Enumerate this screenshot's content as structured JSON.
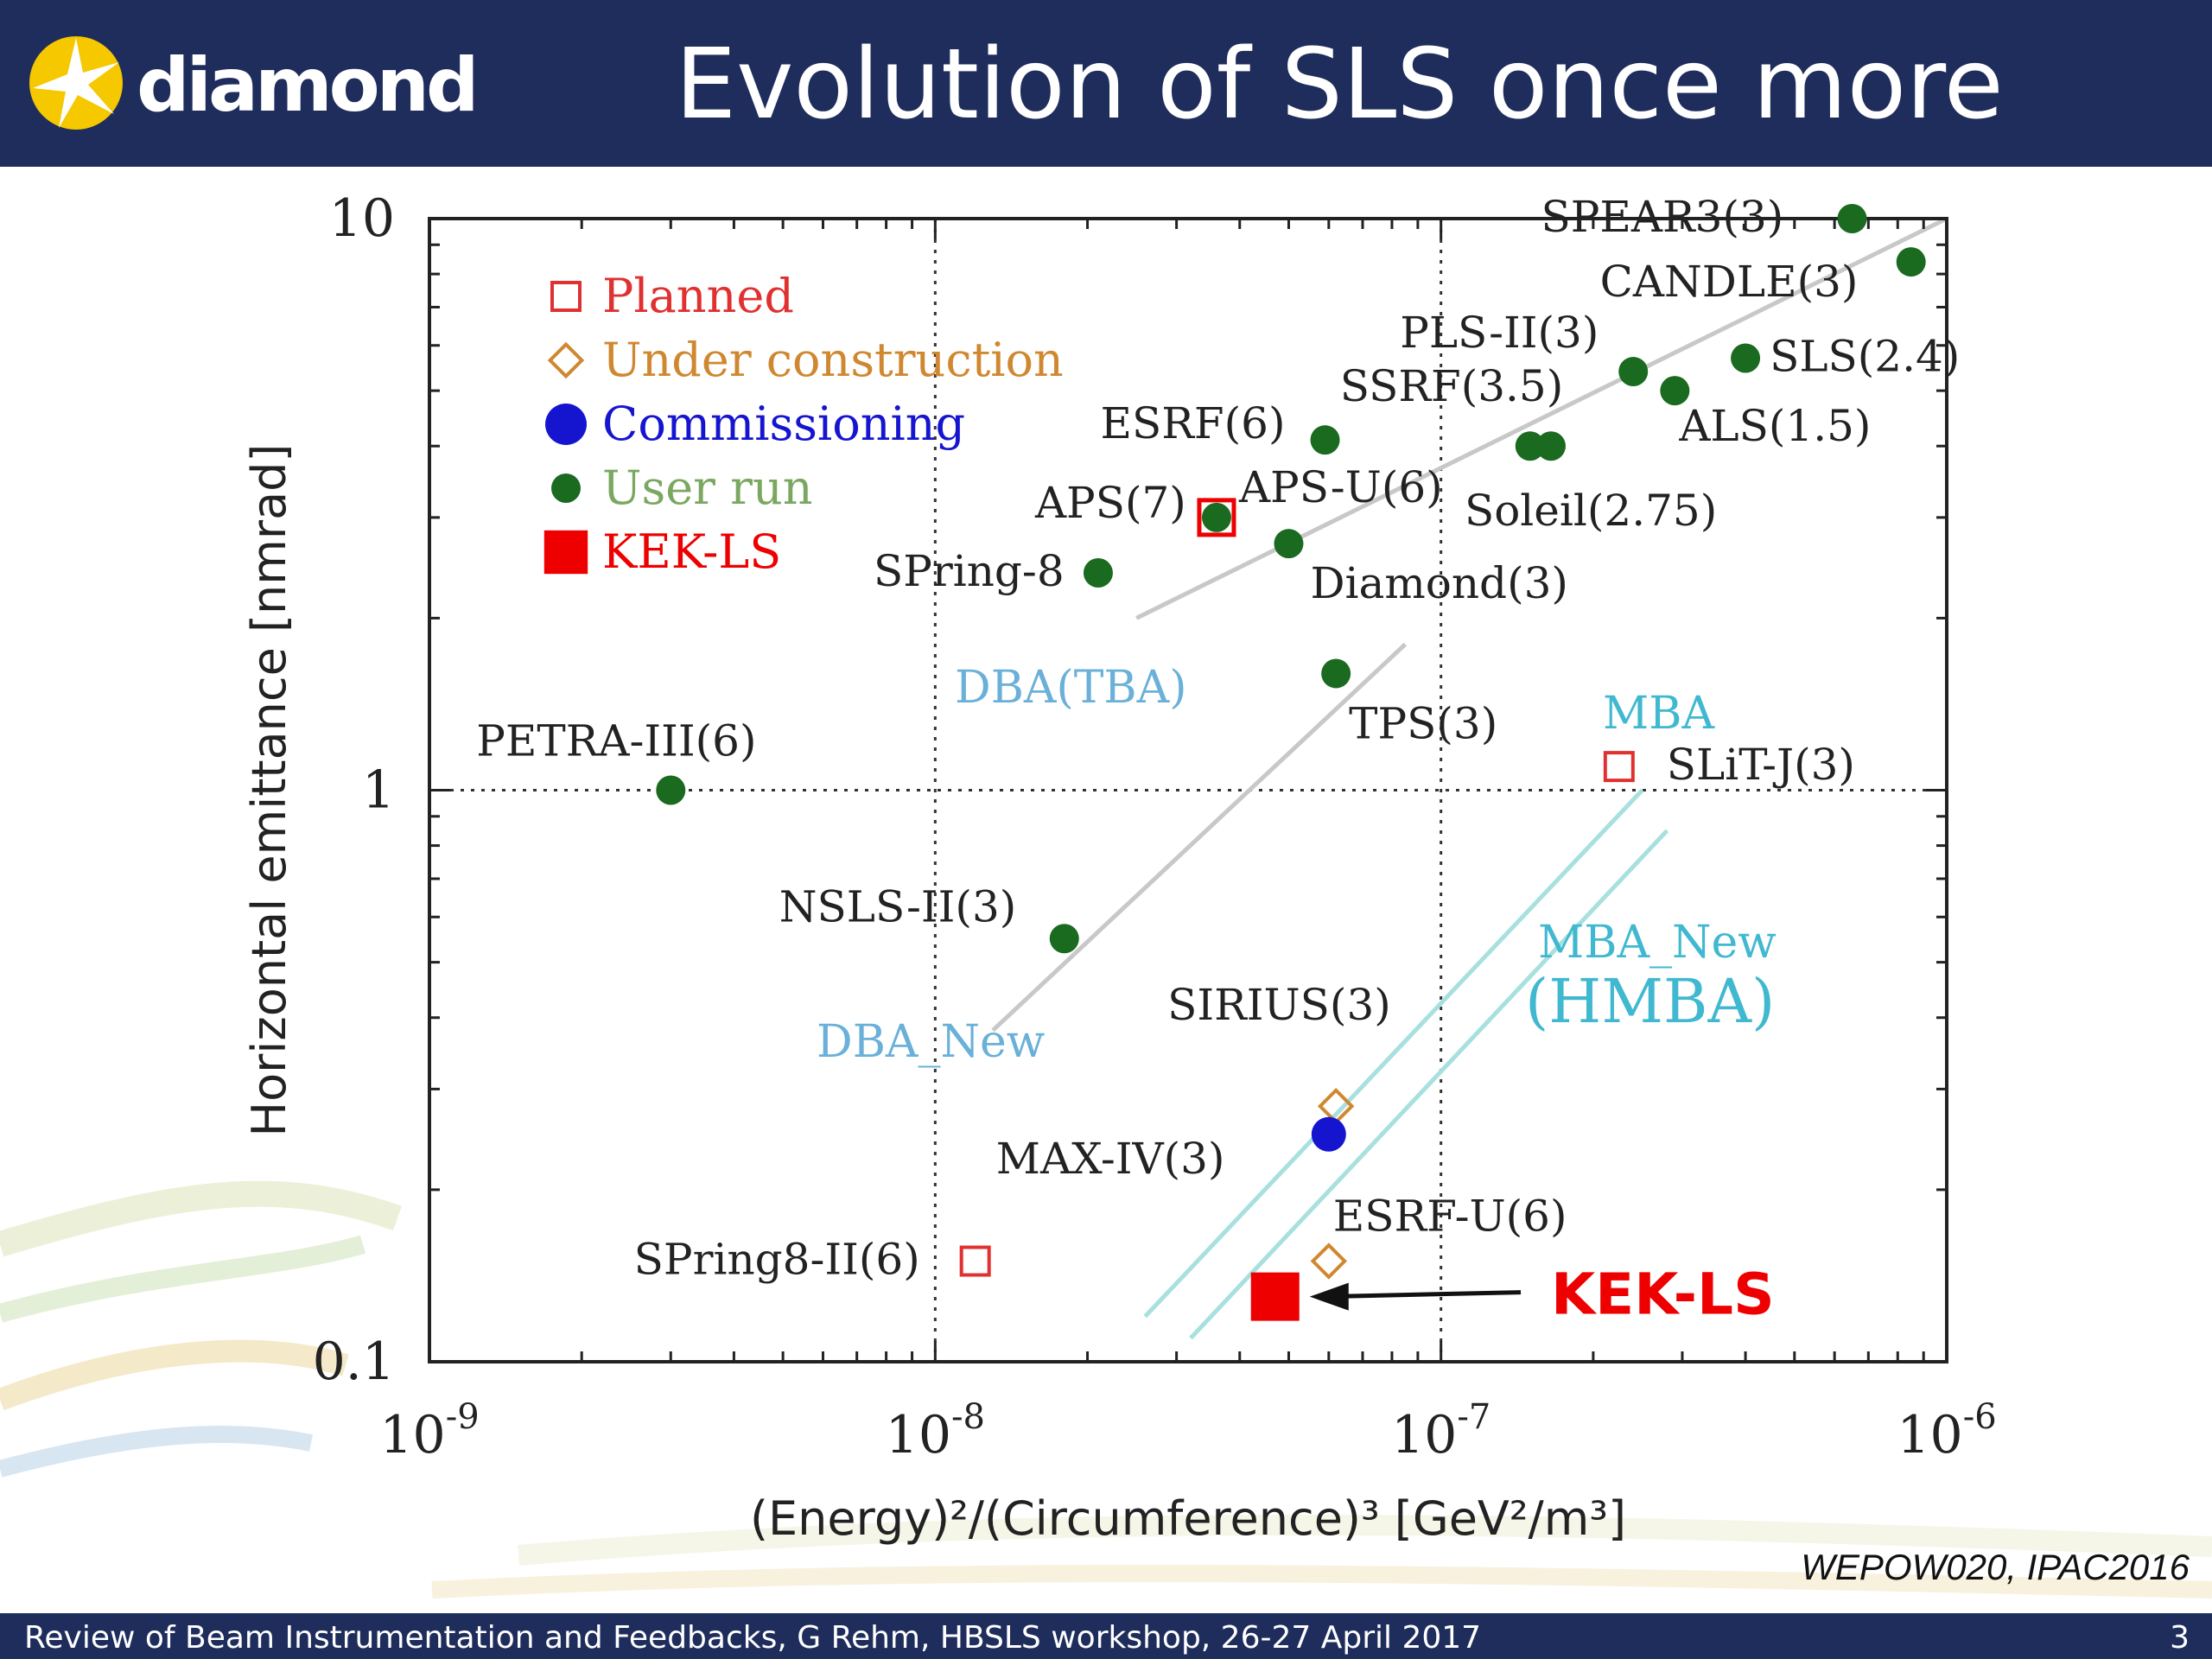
{
  "slide": {
    "logo_text": "diamond",
    "title": "Evolution of SLS once more",
    "reference": "WEPOW020, IPAC2016",
    "footer_text": "Review of Beam Instrumentation and Feedbacks, G Rehm, HBSLS workshop, 26-27 April 2017",
    "page_number": "3"
  },
  "colors": {
    "header_bg": "#1f2d5c",
    "planned": "#e03030",
    "under_construction": "#d08830",
    "commissioning": "#1515d0",
    "user_run": "#1a6a20",
    "kek_ls": "#ee0000",
    "dba_line": "#c8c8c8",
    "mba_line": "#a8e0e0"
  },
  "chart_data": {
    "type": "scatter",
    "xscale": "log",
    "yscale": "log",
    "xlim": [
      1e-09,
      1e-06
    ],
    "ylim": [
      0.1,
      10
    ],
    "xlabel": "(Energy)²/(Circumference)³  [GeV²/m³]",
    "ylabel": "Horizontal emittance [nmrad]",
    "x_ticks": [
      {
        "value": 1e-09,
        "base": "10",
        "exp": "-9"
      },
      {
        "value": 1e-08,
        "base": "10",
        "exp": "-8"
      },
      {
        "value": 1e-07,
        "base": "10",
        "exp": "-7"
      },
      {
        "value": 1e-06,
        "base": "10",
        "exp": "-6"
      }
    ],
    "y_ticks": [
      {
        "value": 0.1,
        "label": "0.1"
      },
      {
        "value": 1,
        "label": "1"
      },
      {
        "value": 10,
        "label": "10"
      }
    ],
    "grid": true,
    "legend_position": "top-left",
    "legend": [
      {
        "label": "Planned",
        "category": "planned"
      },
      {
        "label": "Under construction",
        "category": "under_construction"
      },
      {
        "label": "Commissioning",
        "category": "commissioning"
      },
      {
        "label": "User run",
        "category": "user_run"
      },
      {
        "label": "KEK-LS",
        "category": "kek_ls"
      }
    ],
    "points": [
      {
        "label": "SPEAR3(3)",
        "x": 6.5e-07,
        "y": 10.0,
        "category": "user_run"
      },
      {
        "label": "CANDLE(3)",
        "x": 8.5e-07,
        "y": 8.4,
        "category": "user_run"
      },
      {
        "label": "PLS-II(3)",
        "x": 2.4e-07,
        "y": 5.4,
        "category": "user_run"
      },
      {
        "label": "SLS(2.4)",
        "x": 4e-07,
        "y": 5.7,
        "category": "user_run"
      },
      {
        "label": "ALS(1.5)",
        "x": 2.9e-07,
        "y": 5.0,
        "category": "user_run"
      },
      {
        "label": "SSRF(3.5)",
        "x": 1.5e-07,
        "y": 4.0,
        "category": "user_run"
      },
      {
        "label": "Soleil(2.75)",
        "x": 1.65e-07,
        "y": 4.0,
        "category": "user_run"
      },
      {
        "label": "ESRF(6)",
        "x": 5.9e-08,
        "y": 4.1,
        "category": "user_run"
      },
      {
        "label": "APS(7)",
        "x": 3.6e-08,
        "y": 3.0,
        "category": "user_run"
      },
      {
        "label": "APS-U(6)",
        "x": 3.6e-08,
        "y": 3.0,
        "category": "planned"
      },
      {
        "label": "Diamond(3)",
        "x": 5e-08,
        "y": 2.7,
        "category": "user_run"
      },
      {
        "label": "SPring-8",
        "x": 2.1e-08,
        "y": 2.4,
        "category": "user_run"
      },
      {
        "label": "TPS(3)",
        "x": 6.2e-08,
        "y": 1.6,
        "category": "user_run"
      },
      {
        "label": "SLiT-J(3)",
        "x": 2.25e-07,
        "y": 1.1,
        "category": "planned"
      },
      {
        "label": "PETRA-III(6)",
        "x": 3e-09,
        "y": 1.0,
        "category": "user_run"
      },
      {
        "label": "NSLS-II(3)",
        "x": 1.8e-08,
        "y": 0.55,
        "category": "user_run"
      },
      {
        "label": "SIRIUS(3)",
        "x": 6.2e-08,
        "y": 0.28,
        "category": "under_construction"
      },
      {
        "label": "MAX-IV(3)",
        "x": 6e-08,
        "y": 0.25,
        "category": "commissioning"
      },
      {
        "label": "ESRF-U(6)",
        "x": 6e-08,
        "y": 0.15,
        "category": "under_construction"
      },
      {
        "label": "SPring8-II(6)",
        "x": 1.2e-08,
        "y": 0.15,
        "category": "planned"
      },
      {
        "label": "KEK-LS",
        "x": 4.7e-08,
        "y": 0.13,
        "category": "kek_ls"
      }
    ],
    "trend_lines": [
      {
        "label": "DBA(TBA)",
        "from": [
          2.5e-08,
          2.0
        ],
        "to": [
          1e-06,
          10.0
        ],
        "color": "dba_line"
      },
      {
        "label": "DBA_New",
        "from": [
          1.3e-08,
          0.38
        ],
        "to": [
          8.5e-08,
          1.8
        ],
        "color": "dba_line"
      },
      {
        "label": "MBA",
        "from": [
          2.6e-08,
          0.12
        ],
        "to": [
          2.5e-07,
          1.0
        ],
        "color": "mba_line"
      },
      {
        "label": "MBA_New (HMBA)",
        "from": [
          3.2e-08,
          0.11
        ],
        "to": [
          2.8e-07,
          0.85
        ],
        "color": "mba_line"
      }
    ],
    "annotation": {
      "text": "KEK-LS",
      "points_to": "KEK-LS"
    }
  }
}
